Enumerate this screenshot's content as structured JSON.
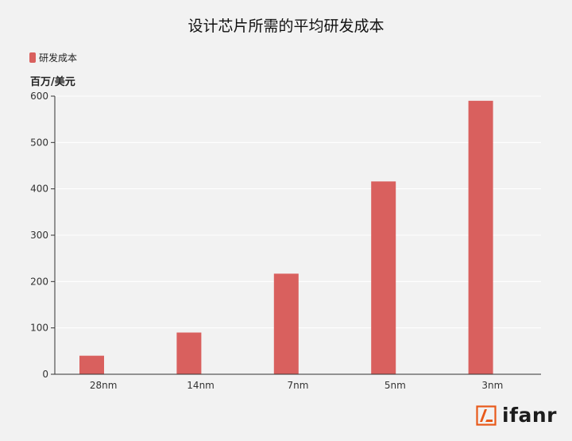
{
  "chart_data": {
    "type": "bar",
    "title": "设计芯片所需的平均研发成本",
    "ylabel": "百万/美元",
    "xlabel": "",
    "categories": [
      "28nm",
      "14nm",
      "7nm",
      "5nm",
      "3nm"
    ],
    "series": [
      {
        "name": "研发成本",
        "values": [
          40,
          90,
          217,
          416,
          590
        ],
        "color": "#d9605e"
      }
    ],
    "ylim": [
      0,
      600
    ],
    "yticks": [
      0,
      100,
      200,
      300,
      400,
      500,
      600
    ],
    "grid": true,
    "legend": "top-left"
  },
  "watermark": {
    "text": "ifanr",
    "icon": "ifanr-logo-icon",
    "accent": "#e8591a"
  }
}
